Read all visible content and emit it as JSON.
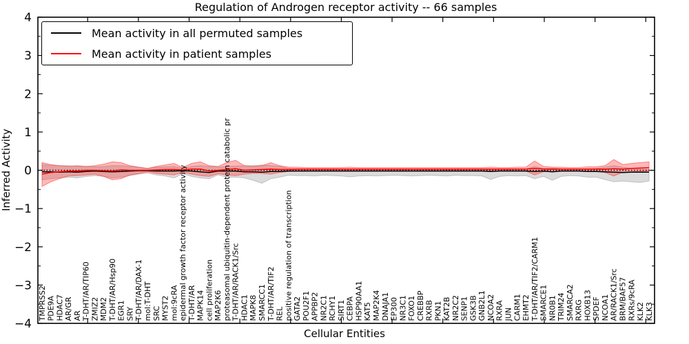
{
  "chart_data": {
    "type": "line",
    "title": "Regulation of Androgen receptor activity -- 66 samples",
    "xlabel": "Cellular Entities",
    "ylabel": "Inferred Activity",
    "ylim": [
      -4,
      4
    ],
    "yticks": [
      4,
      3,
      2,
      1,
      0,
      -1,
      -2,
      -3,
      -4
    ],
    "y_minor_step": 0.5,
    "grid": false,
    "zero_line": 0,
    "legend_position": "upper left",
    "categories": [
      "TMPRSS2",
      "PDE9A",
      "HDAC7",
      "AR/GR",
      "AR",
      "T-DHT/AR/TIP60",
      "ZMIZ2",
      "MDM2",
      "T-DHT/AR/Hsp90",
      "EGR1",
      "SRY",
      "T-DHT/AR/DAX-1",
      "mol:T-DHT",
      "SRC",
      "MYST2",
      "mol:9cRA",
      "epidermal growth factor receptor activity",
      "T-DHT/AR",
      "MAPK14",
      "cell proliferation",
      "MAP2K6",
      "proteasomal ubiquitin-dependent protein catabolic pr",
      "T-DHT/AR/RACK1/Src",
      "HDAC1",
      "MAPK8",
      "SMARCC1",
      "T-DHT/AR/TIF2",
      "REL",
      "positive regulation of transcription",
      "GATA2",
      "POU2F1",
      "APPBP2",
      "NR2C1",
      "RCHY1",
      "SIRT1",
      "CEBPA",
      "HSP90AA1",
      "KAT5",
      "MAP2K4",
      "DNAJA1",
      "EP300",
      "NR3C1",
      "FOXO1",
      "CREBBP",
      "RXRB",
      "PKN1",
      "KAT2B",
      "NR2C2",
      "SENP1",
      "GSK3B",
      "GNB2L1",
      "NCOA2",
      "RXRA",
      "JUN",
      "CARM1",
      "EHMT2",
      "T-DHT/AR/TIF2/CARM1",
      "SMARCE1",
      "NR0B1",
      "TRIM24",
      "SMARCA2",
      "RXRG",
      "HOXB13",
      "SPDEF",
      "NCOA1",
      "AR/RACK1/Src",
      "BRM/BAF57",
      "RXRs/9cRA",
      "KLK2",
      "KLK3"
    ],
    "series": [
      {
        "name": "Mean activity in all permuted samples",
        "color": "#000000",
        "values": [
          -0.04,
          -0.04,
          -0.05,
          -0.04,
          -0.05,
          -0.03,
          -0.02,
          -0.03,
          -0.04,
          -0.03,
          -0.02,
          -0.01,
          -0.01,
          -0.02,
          -0.02,
          -0.02,
          -0.01,
          -0.02,
          -0.04,
          -0.06,
          -0.02,
          -0.02,
          -0.02,
          -0.04,
          -0.04,
          -0.05,
          -0.03,
          -0.03,
          -0.02,
          -0.02,
          -0.02,
          -0.02,
          -0.02,
          -0.02,
          -0.02,
          -0.02,
          -0.02,
          -0.02,
          -0.02,
          -0.02,
          -0.02,
          -0.02,
          -0.02,
          -0.02,
          -0.02,
          -0.02,
          -0.02,
          -0.02,
          -0.02,
          -0.02,
          -0.02,
          -0.03,
          -0.02,
          -0.02,
          -0.02,
          -0.02,
          -0.03,
          -0.02,
          -0.04,
          -0.02,
          -0.02,
          -0.02,
          -0.03,
          -0.03,
          -0.04,
          -0.05,
          -0.06,
          -0.05,
          -0.05,
          -0.05
        ]
      },
      {
        "name": "Mean activity in patient samples",
        "color": "#ff0000",
        "values": [
          -0.1,
          -0.06,
          -0.04,
          -0.02,
          -0.02,
          0.0,
          0.0,
          -0.01,
          -0.02,
          0.01,
          0.0,
          0.0,
          0.0,
          0.01,
          0.02,
          0.02,
          0.01,
          0.03,
          0.03,
          -0.02,
          0.0,
          0.02,
          0.04,
          0.0,
          0.01,
          0.02,
          0.03,
          0.02,
          0.02,
          0.03,
          0.03,
          0.03,
          0.03,
          0.03,
          0.03,
          0.03,
          0.03,
          0.03,
          0.03,
          0.03,
          0.03,
          0.03,
          0.03,
          0.03,
          0.03,
          0.03,
          0.03,
          0.03,
          0.03,
          0.03,
          0.03,
          0.03,
          0.03,
          0.03,
          0.03,
          0.03,
          0.05,
          0.03,
          0.03,
          0.03,
          0.03,
          0.03,
          0.03,
          0.03,
          0.03,
          0.04,
          0.03,
          0.05,
          0.06,
          0.07
        ]
      }
    ],
    "bands": [
      {
        "name": "permuted-samples-std-band",
        "fill": "#b8b8b8",
        "fill_opacity": 0.5,
        "edge": "#8c8c8c",
        "edge_opacity": 0.45,
        "upper": [
          0.15,
          0.13,
          0.12,
          0.12,
          0.1,
          0.1,
          0.09,
          0.1,
          0.12,
          0.12,
          0.1,
          0.08,
          0.05,
          0.08,
          0.09,
          0.1,
          0.05,
          0.1,
          0.12,
          0.1,
          0.08,
          0.1,
          0.11,
          0.12,
          0.12,
          0.14,
          0.12,
          0.1,
          0.05,
          0.03,
          0.02,
          0.03,
          0.02,
          0.02,
          0.03,
          0.03,
          0.02,
          0.02,
          0.03,
          0.02,
          0.02,
          0.02,
          0.03,
          0.02,
          0.02,
          0.03,
          0.02,
          0.02,
          0.03,
          0.02,
          0.03,
          0.03,
          0.03,
          0.02,
          0.03,
          0.03,
          0.1,
          0.05,
          0.06,
          0.04,
          0.03,
          0.03,
          0.04,
          0.05,
          0.08,
          0.12,
          0.08,
          0.05,
          0.03,
          0.02
        ],
        "lower": [
          -0.25,
          -0.22,
          -0.2,
          -0.18,
          -0.2,
          -0.16,
          -0.14,
          -0.16,
          -0.2,
          -0.18,
          -0.14,
          -0.1,
          -0.07,
          -0.12,
          -0.15,
          -0.2,
          -0.09,
          -0.16,
          -0.2,
          -0.22,
          -0.12,
          -0.18,
          -0.18,
          -0.2,
          -0.26,
          -0.34,
          -0.22,
          -0.18,
          -0.13,
          -0.14,
          -0.14,
          -0.15,
          -0.13,
          -0.14,
          -0.15,
          -0.17,
          -0.15,
          -0.14,
          -0.15,
          -0.14,
          -0.13,
          -0.14,
          -0.15,
          -0.14,
          -0.13,
          -0.14,
          -0.15,
          -0.13,
          -0.14,
          -0.14,
          -0.15,
          -0.24,
          -0.16,
          -0.14,
          -0.15,
          -0.14,
          -0.22,
          -0.16,
          -0.26,
          -0.16,
          -0.14,
          -0.15,
          -0.18,
          -0.18,
          -0.24,
          -0.3,
          -0.28,
          -0.3,
          -0.32,
          -0.28
        ]
      },
      {
        "name": "patient-samples-std-band",
        "fill": "#ff2a2a",
        "fill_opacity": 0.33,
        "edge": "#ff3c3c",
        "edge_opacity": 0.6,
        "upper": [
          0.2,
          0.15,
          0.12,
          0.1,
          0.12,
          0.1,
          0.12,
          0.16,
          0.22,
          0.2,
          0.12,
          0.08,
          0.05,
          0.1,
          0.14,
          0.18,
          0.07,
          0.18,
          0.22,
          0.12,
          0.1,
          0.2,
          0.26,
          0.12,
          0.1,
          0.12,
          0.2,
          0.12,
          0.08,
          0.08,
          0.07,
          0.07,
          0.07,
          0.07,
          0.07,
          0.08,
          0.07,
          0.07,
          0.07,
          0.07,
          0.07,
          0.07,
          0.07,
          0.07,
          0.07,
          0.07,
          0.07,
          0.07,
          0.07,
          0.07,
          0.07,
          0.08,
          0.07,
          0.07,
          0.08,
          0.08,
          0.24,
          0.1,
          0.08,
          0.08,
          0.07,
          0.07,
          0.09,
          0.09,
          0.12,
          0.28,
          0.15,
          0.18,
          0.2,
          0.22
        ],
        "lower": [
          -0.42,
          -0.3,
          -0.22,
          -0.15,
          -0.14,
          -0.12,
          -0.1,
          -0.16,
          -0.25,
          -0.22,
          -0.12,
          -0.08,
          -0.04,
          -0.08,
          -0.1,
          -0.12,
          -0.05,
          -0.1,
          -0.14,
          -0.16,
          -0.09,
          -0.12,
          -0.14,
          -0.1,
          -0.08,
          -0.08,
          -0.1,
          -0.06,
          -0.03,
          -0.02,
          -0.01,
          -0.01,
          -0.01,
          -0.01,
          -0.01,
          -0.01,
          -0.01,
          -0.01,
          -0.01,
          -0.01,
          -0.01,
          -0.01,
          -0.01,
          -0.01,
          -0.01,
          -0.01,
          -0.01,
          -0.01,
          -0.01,
          -0.01,
          -0.01,
          -0.02,
          -0.01,
          -0.01,
          -0.02,
          -0.02,
          -0.12,
          -0.04,
          -0.03,
          -0.02,
          -0.01,
          -0.02,
          -0.03,
          -0.03,
          -0.06,
          -0.15,
          -0.05,
          -0.04,
          -0.03,
          -0.02
        ]
      }
    ]
  }
}
